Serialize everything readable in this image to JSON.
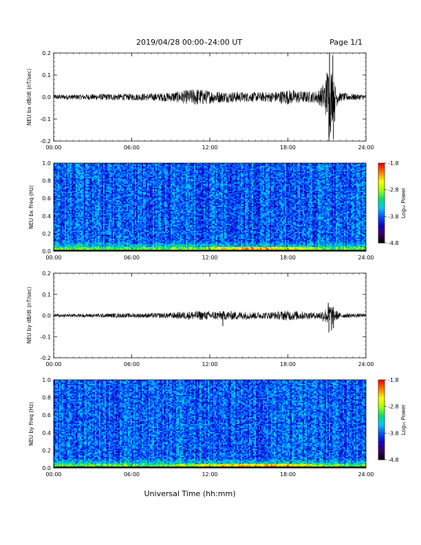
{
  "header": {
    "title": "2019/04/28  00:00–24:00 UT",
    "page": "Page 1/1"
  },
  "xaxis": {
    "label": "Universal Time (hh:mm)",
    "ticks": [
      "00:00",
      "06:00",
      "12:00",
      "18:00",
      "24:00"
    ],
    "range_hours": [
      0,
      24
    ]
  },
  "colorbar": {
    "label": "Log₁₀ Power",
    "ticks": [
      "-1.8",
      "-2.8",
      "-3.8",
      "-4.8"
    ],
    "range": [
      -4.8,
      -1.8
    ],
    "colormap": [
      "#000000",
      "#3a0060",
      "#1400c8",
      "#0050ff",
      "#00c8ff",
      "#00e070",
      "#a0ff00",
      "#ffff00",
      "#ff8000",
      "#ff0000"
    ]
  },
  "chart_data": [
    {
      "type": "line",
      "name": "bx-dbdt",
      "ylabel": "NEU bx dB/dt (nT/sec)",
      "ylim": [
        -0.2,
        0.2
      ],
      "yticks": [
        "0.2",
        "0.1",
        "0.0",
        "-0.1",
        "-0.2"
      ],
      "color": "#000000",
      "envelope_hours": [
        0,
        2,
        4,
        6,
        8,
        9,
        10,
        11,
        12,
        13,
        14,
        15,
        16,
        17,
        18,
        19,
        20,
        20.5,
        21,
        21.2,
        21.4,
        21.6,
        22,
        23,
        24
      ],
      "envelope_amplitude": [
        0.012,
        0.012,
        0.015,
        0.015,
        0.018,
        0.022,
        0.03,
        0.04,
        0.03,
        0.025,
        0.025,
        0.022,
        0.022,
        0.025,
        0.035,
        0.028,
        0.025,
        0.04,
        0.1,
        0.2,
        0.12,
        0.06,
        0.02,
        0.015,
        0.012
      ],
      "spikes": [
        {
          "x": 21.15,
          "y": -0.2
        },
        {
          "x": 21.2,
          "y": 0.2
        },
        {
          "x": 21.45,
          "y": 0.19
        },
        {
          "x": 21.5,
          "y": -0.19
        },
        {
          "x": 21.0,
          "y": 0.11
        },
        {
          "x": 21.6,
          "y": -0.11
        }
      ]
    },
    {
      "type": "heatmap",
      "name": "bx-spectrogram",
      "ylabel": "NEU bx Freq (Hz)",
      "ylim": [
        0.0,
        1.0
      ],
      "yticks": [
        "1.0",
        "0.8",
        "0.6",
        "0.4",
        "0.2",
        "0.0"
      ],
      "low_freq_enhancement_hours": [
        10,
        21
      ],
      "value_range": [
        -4.8,
        -1.8
      ]
    },
    {
      "type": "line",
      "name": "by-dbdt",
      "ylabel": "NEU by dB/dt (nT/sec)",
      "ylim": [
        -0.2,
        0.2
      ],
      "yticks": [
        "0.2",
        "0.1",
        "0.0",
        "-0.1",
        "-0.2"
      ],
      "color": "#000000",
      "envelope_hours": [
        0,
        2,
        4,
        6,
        8,
        9,
        10,
        11,
        12,
        13,
        14,
        15,
        16,
        17,
        18,
        19,
        20,
        20.5,
        21,
        21.2,
        21.4,
        21.6,
        22,
        23,
        24
      ],
      "envelope_amplitude": [
        0.008,
        0.008,
        0.01,
        0.01,
        0.012,
        0.014,
        0.018,
        0.022,
        0.02,
        0.022,
        0.02,
        0.018,
        0.016,
        0.018,
        0.025,
        0.02,
        0.015,
        0.02,
        0.04,
        0.06,
        0.05,
        0.03,
        0.012,
        0.01,
        0.008
      ],
      "spikes": [
        {
          "x": 21.1,
          "y": 0.06
        },
        {
          "x": 21.15,
          "y": -0.08
        },
        {
          "x": 21.35,
          "y": -0.07
        },
        {
          "x": 21.5,
          "y": -0.06
        },
        {
          "x": 13.0,
          "y": -0.05
        }
      ]
    },
    {
      "type": "heatmap",
      "name": "by-spectrogram",
      "ylabel": "NEU by Freq (Hz)",
      "ylim": [
        0.0,
        1.0
      ],
      "yticks": [
        "1.0",
        "0.8",
        "0.6",
        "0.4",
        "0.2",
        "0.0"
      ],
      "low_freq_enhancement_hours": [
        9,
        21
      ],
      "value_range": [
        -4.8,
        -1.8
      ]
    }
  ]
}
